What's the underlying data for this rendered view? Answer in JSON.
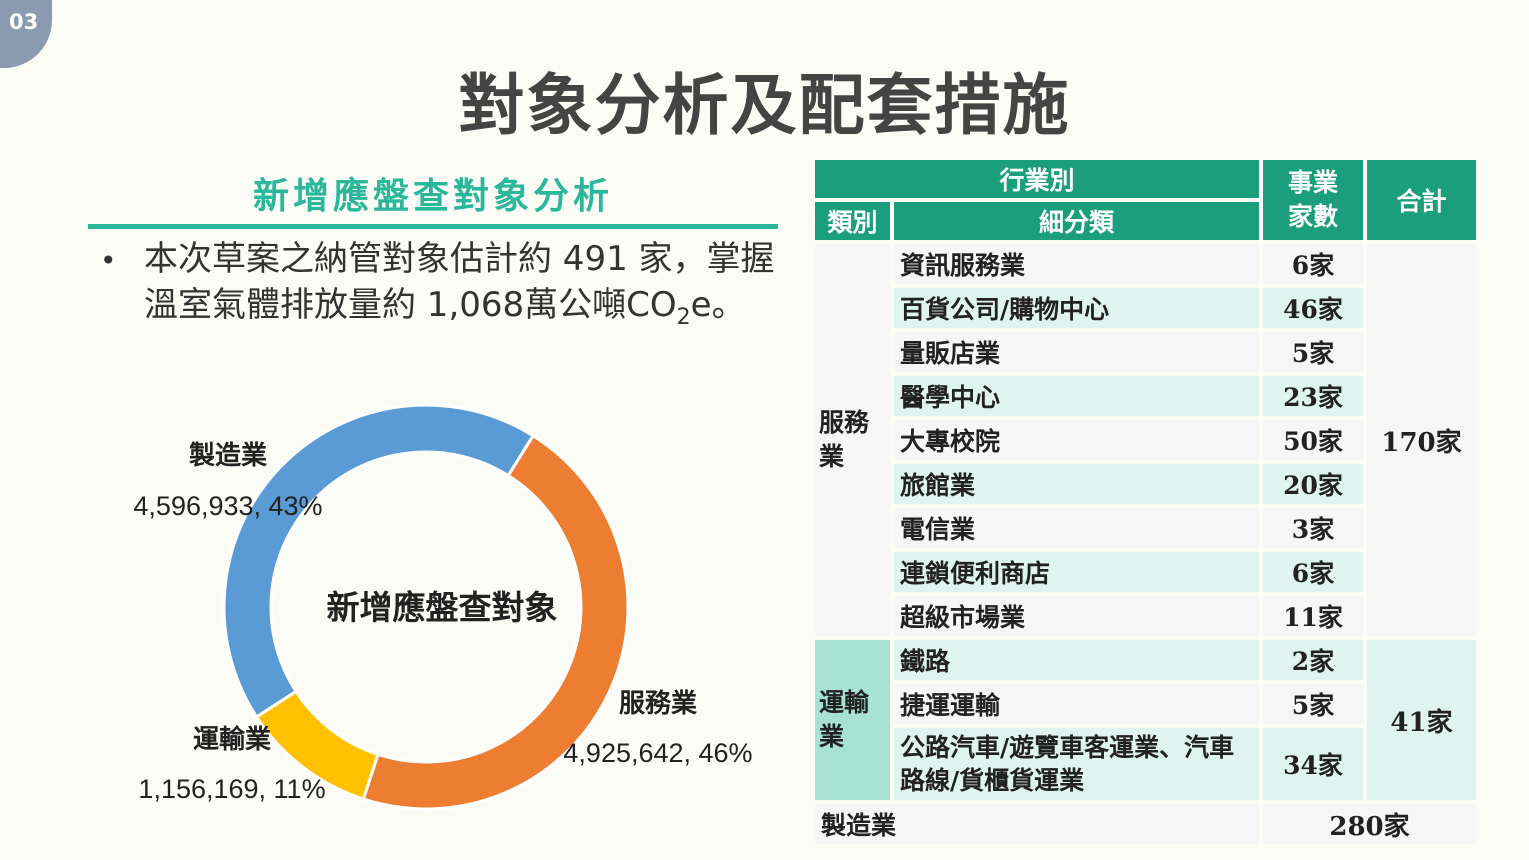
{
  "page_number": "03",
  "title": "對象分析及配套措施",
  "subtitle": "新增應盤查對象分析",
  "bullet": {
    "text_main": "本次草案之納管對象估計約 491 家，掌握溫室氣體排放量約 1,068萬公噸CO",
    "text_sub": "2",
    "text_tail": "e。"
  },
  "chart_data": {
    "type": "pie",
    "variant": "donut",
    "center_label": "新增應盤查對象",
    "slices": [
      {
        "label": "製造業",
        "value": 4596933,
        "value_text": "4,596,933, 43%",
        "percent": 43,
        "color": "#5b9bd5"
      },
      {
        "label": "服務業",
        "value": 4925642,
        "value_text": "4,925,642, 46%",
        "percent": 46,
        "color": "#ed7d31"
      },
      {
        "label": "運輸業",
        "value": 1156169,
        "value_text": "1,156,169, 11%",
        "percent": 11,
        "color": "#ffc000"
      }
    ]
  },
  "table": {
    "header_industry": "行業別",
    "header_category": "類別",
    "header_subcategory": "細分類",
    "header_count": "事業家數",
    "header_total": "合計",
    "groups": [
      {
        "category": "服務業",
        "total": "170家",
        "rows": [
          {
            "name": "資訊服務業",
            "count": "6家"
          },
          {
            "name": "百貨公司/購物中心",
            "count": "46家"
          },
          {
            "name": "量販店業",
            "count": "5家"
          },
          {
            "name": "醫學中心",
            "count": "23家"
          },
          {
            "name": "大專校院",
            "count": "50家"
          },
          {
            "name": "旅館業",
            "count": "20家"
          },
          {
            "name": "電信業",
            "count": "3家"
          },
          {
            "name": "連鎖便利商店",
            "count": "6家"
          },
          {
            "name": "超級市場業",
            "count": "11家"
          }
        ]
      },
      {
        "category": "運輸業",
        "total": "41家",
        "rows": [
          {
            "name": "鐵路",
            "count": "2家"
          },
          {
            "name": "捷運運輸",
            "count": "5家"
          },
          {
            "name": "公路汽車/遊覽車客運業、汽車路線/貨櫃貨運業",
            "count": "34家"
          }
        ]
      }
    ],
    "manufacturing": {
      "category": "製造業",
      "total": "280家"
    }
  }
}
